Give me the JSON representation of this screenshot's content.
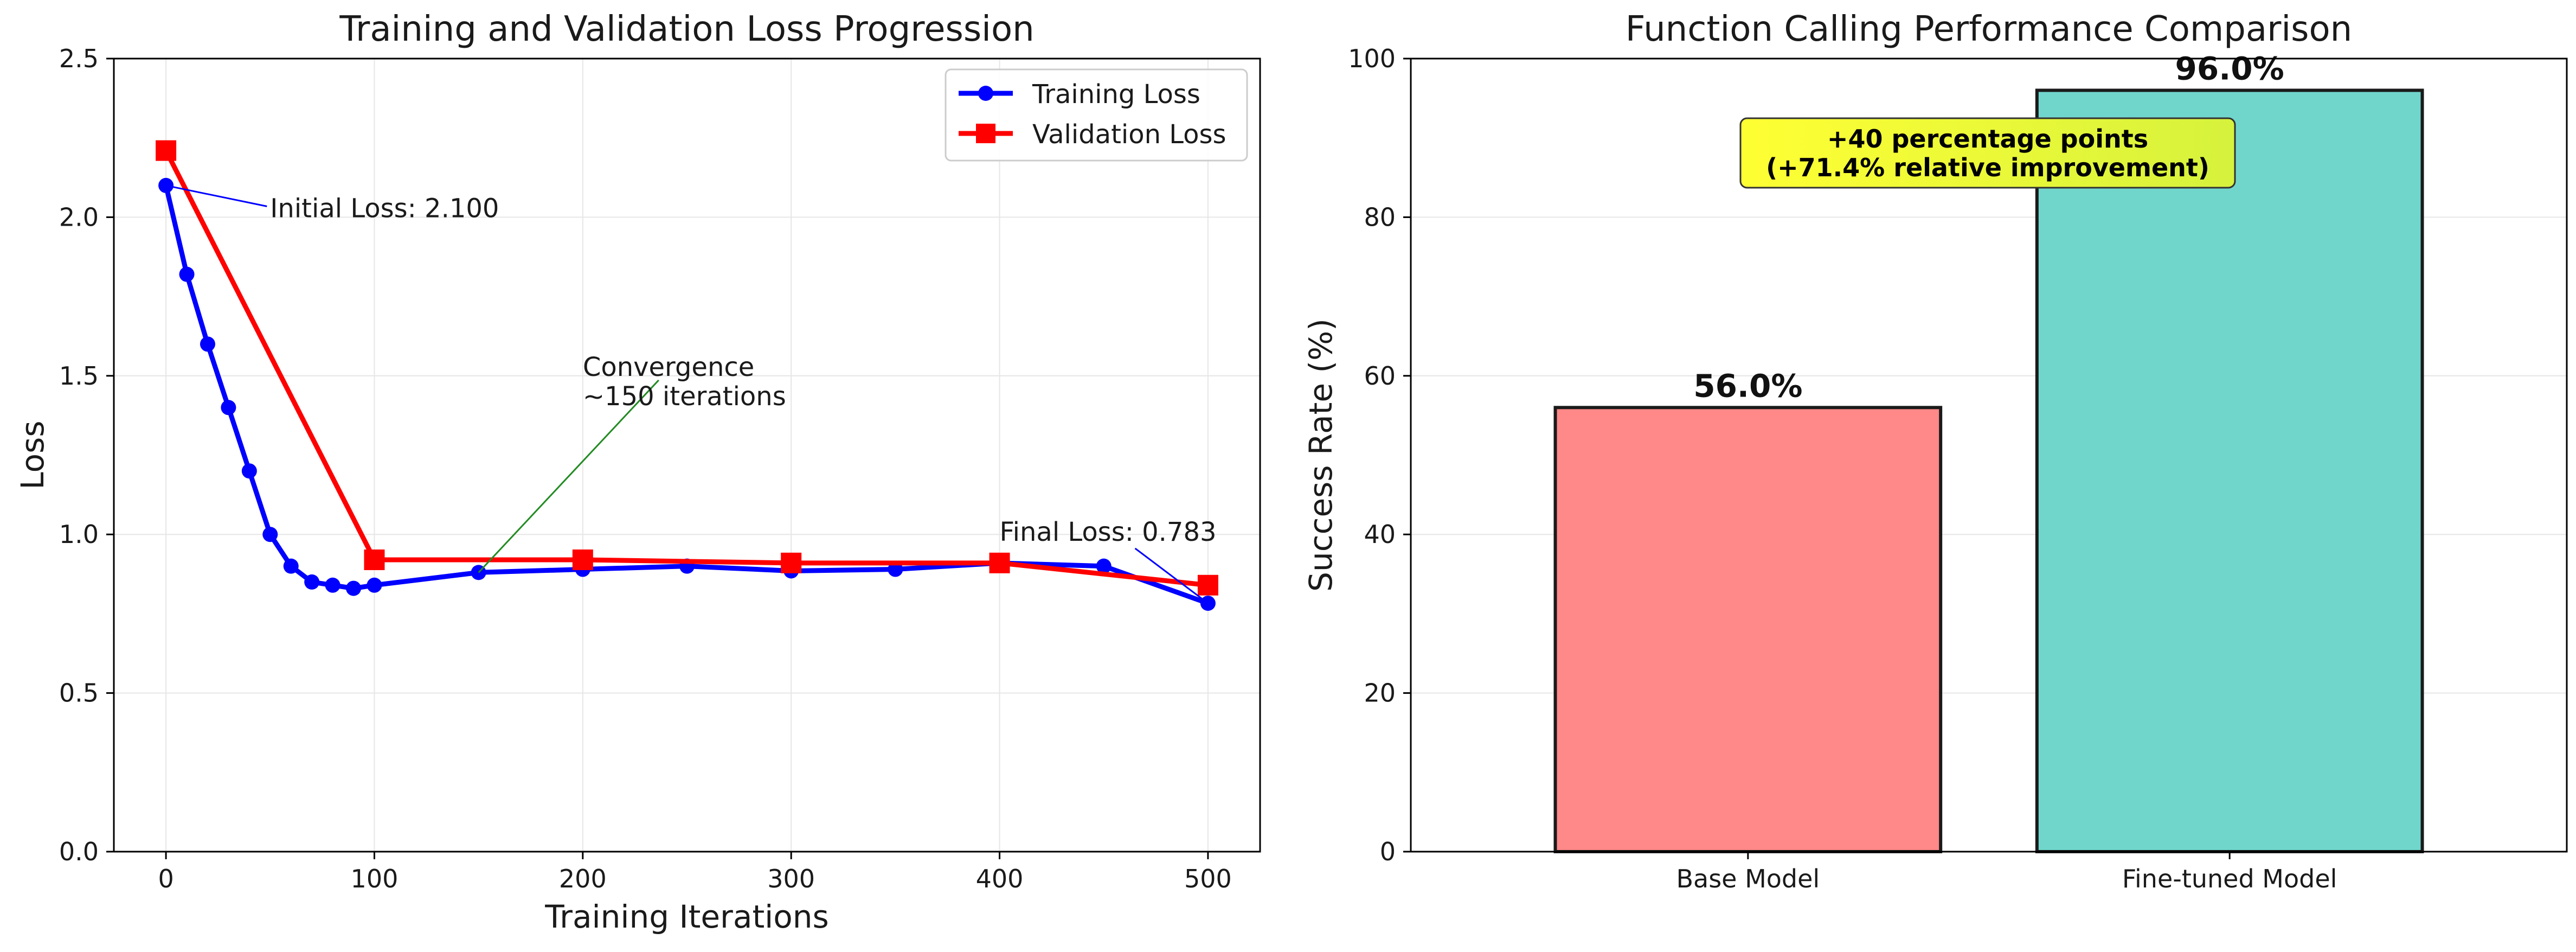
{
  "chart_data": [
    {
      "type": "line",
      "title": "Training and Validation Loss Progression",
      "xlabel": "Training Iterations",
      "ylabel": "Loss",
      "xlim": [
        -25,
        525
      ],
      "ylim": [
        0.0,
        2.5
      ],
      "xticks": [
        "0",
        "100",
        "200",
        "300",
        "400",
        "500"
      ],
      "yticks": [
        "0.0",
        "0.5",
        "1.0",
        "1.5",
        "2.0",
        "2.5"
      ],
      "grid": true,
      "legend_position": "top-right",
      "series": [
        {
          "name": "Training Loss",
          "color": "#0000ff",
          "marker": "circle",
          "x": [
            0,
            10,
            20,
            30,
            40,
            50,
            60,
            70,
            80,
            90,
            100,
            150,
            200,
            250,
            300,
            350,
            400,
            450,
            500
          ],
          "y": [
            2.1,
            1.82,
            1.6,
            1.4,
            1.2,
            1.0,
            0.9,
            0.85,
            0.84,
            0.83,
            0.84,
            0.88,
            0.89,
            0.9,
            0.885,
            0.89,
            0.91,
            0.9,
            0.783
          ]
        },
        {
          "name": "Validation Loss",
          "color": "#ff0000",
          "marker": "square",
          "x": [
            0,
            100,
            200,
            300,
            400,
            500
          ],
          "y": [
            2.21,
            0.92,
            0.92,
            0.91,
            0.91,
            0.84
          ]
        }
      ],
      "annotations": [
        {
          "text": "Initial Loss: 2.100",
          "point": [
            0,
            2.1
          ],
          "text_at": [
            50,
            2.0
          ],
          "color": "#0000ff"
        },
        {
          "text": "Convergence\n~150 iterations",
          "point": [
            150,
            0.88
          ],
          "text_at": [
            200,
            1.5
          ],
          "color": "#228b22"
        },
        {
          "text": "Final Loss: 0.783",
          "point": [
            500,
            0.783
          ],
          "text_at": [
            400,
            0.98
          ],
          "color": "#0000ff"
        }
      ]
    },
    {
      "type": "bar",
      "title": "Function Calling Performance Comparison",
      "xlabel": "",
      "ylabel": "Success Rate (%)",
      "ylim": [
        0,
        100
      ],
      "yticks": [
        "0",
        "20",
        "40",
        "60",
        "80",
        "100"
      ],
      "grid": true,
      "categories": [
        "Base Model",
        "Fine-tuned Model"
      ],
      "values": [
        56.0,
        96.0
      ],
      "value_labels": [
        "56.0%",
        "96.0%"
      ],
      "colors": [
        "#ff8888",
        "#70d6cc"
      ],
      "annotation": {
        "lines": [
          "+40 percentage points",
          "(+71.4% relative improvement)"
        ],
        "background": "#ffff33",
        "placement": "upper-center"
      }
    }
  ]
}
